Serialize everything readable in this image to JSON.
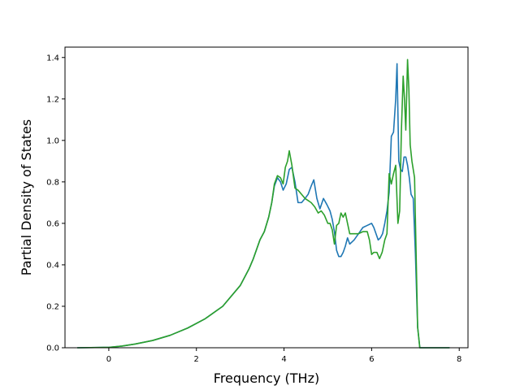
{
  "chart_data": {
    "type": "line",
    "title": "",
    "xlabel": "Frequency (THz)",
    "ylabel": "Partial Density of States",
    "xlim": [
      -1.0,
      8.2
    ],
    "ylim": [
      0.0,
      1.45
    ],
    "x_ticks": [
      0,
      2,
      4,
      6,
      8
    ],
    "x_tick_labels": [
      "0",
      "2",
      "4",
      "6",
      "8"
    ],
    "y_ticks": [
      0.0,
      0.2,
      0.4,
      0.6,
      0.8,
      1.0,
      1.2,
      1.4
    ],
    "y_tick_labels": [
      "0.0",
      "0.2",
      "0.4",
      "0.6",
      "0.8",
      "1.0",
      "1.2",
      "1.4"
    ],
    "grid": false,
    "legend": "none",
    "series": [
      {
        "color": "#1f77b4",
        "x": [
          -0.72,
          0.0,
          0.3,
          0.6,
          1.0,
          1.4,
          1.8,
          2.2,
          2.6,
          3.0,
          3.2,
          3.3,
          3.45,
          3.55,
          3.65,
          3.72,
          3.78,
          3.85,
          3.92,
          3.98,
          4.05,
          4.12,
          4.18,
          4.25,
          4.32,
          4.4,
          4.48,
          4.55,
          4.62,
          4.68,
          4.75,
          4.82,
          4.9,
          4.98,
          5.05,
          5.1,
          5.15,
          5.2,
          5.25,
          5.3,
          5.35,
          5.4,
          5.45,
          5.5,
          5.6,
          5.7,
          5.8,
          5.9,
          6.0,
          6.05,
          6.1,
          6.15,
          6.2,
          6.25,
          6.3,
          6.35,
          6.4,
          6.45,
          6.5,
          6.55,
          6.58,
          6.62,
          6.66,
          6.7,
          6.74,
          6.78,
          6.82,
          6.86,
          6.9,
          6.95,
          7.0,
          7.05,
          7.1,
          7.2,
          7.78
        ],
        "y": [
          0.0,
          0.002,
          0.008,
          0.018,
          0.035,
          0.06,
          0.095,
          0.14,
          0.2,
          0.3,
          0.38,
          0.43,
          0.52,
          0.56,
          0.63,
          0.7,
          0.78,
          0.82,
          0.8,
          0.76,
          0.79,
          0.86,
          0.87,
          0.8,
          0.7,
          0.7,
          0.72,
          0.74,
          0.78,
          0.81,
          0.72,
          0.67,
          0.72,
          0.69,
          0.66,
          0.62,
          0.56,
          0.47,
          0.44,
          0.44,
          0.46,
          0.49,
          0.53,
          0.5,
          0.52,
          0.55,
          0.58,
          0.59,
          0.6,
          0.58,
          0.55,
          0.52,
          0.53,
          0.55,
          0.6,
          0.66,
          0.75,
          1.02,
          1.04,
          1.2,
          1.37,
          0.9,
          0.86,
          0.85,
          0.92,
          0.92,
          0.88,
          0.82,
          0.74,
          0.72,
          0.45,
          0.1,
          0.0,
          0.0,
          0.0
        ]
      },
      {
        "color": "#2ca02c",
        "x": [
          -0.72,
          0.0,
          0.3,
          0.6,
          1.0,
          1.4,
          1.8,
          2.2,
          2.6,
          3.0,
          3.2,
          3.3,
          3.45,
          3.55,
          3.65,
          3.72,
          3.78,
          3.85,
          3.92,
          3.98,
          4.03,
          4.08,
          4.12,
          4.18,
          4.25,
          4.32,
          4.4,
          4.48,
          4.55,
          4.62,
          4.7,
          4.78,
          4.85,
          4.92,
          5.0,
          5.05,
          5.1,
          5.15,
          5.2,
          5.25,
          5.3,
          5.35,
          5.4,
          5.45,
          5.5,
          5.6,
          5.7,
          5.8,
          5.9,
          5.95,
          6.0,
          6.05,
          6.12,
          6.18,
          6.24,
          6.3,
          6.35,
          6.4,
          6.45,
          6.5,
          6.55,
          6.6,
          6.64,
          6.68,
          6.72,
          6.75,
          6.78,
          6.82,
          6.85,
          6.88,
          6.92,
          6.98,
          7.05,
          7.1,
          7.2,
          7.78
        ],
        "y": [
          0.0,
          0.002,
          0.008,
          0.018,
          0.035,
          0.06,
          0.095,
          0.14,
          0.2,
          0.3,
          0.38,
          0.43,
          0.52,
          0.56,
          0.63,
          0.7,
          0.79,
          0.83,
          0.82,
          0.79,
          0.87,
          0.9,
          0.95,
          0.88,
          0.77,
          0.76,
          0.74,
          0.72,
          0.71,
          0.7,
          0.68,
          0.65,
          0.66,
          0.64,
          0.6,
          0.6,
          0.57,
          0.5,
          0.59,
          0.6,
          0.65,
          0.63,
          0.65,
          0.6,
          0.55,
          0.55,
          0.55,
          0.56,
          0.56,
          0.52,
          0.45,
          0.46,
          0.46,
          0.43,
          0.46,
          0.52,
          0.55,
          0.84,
          0.79,
          0.84,
          0.88,
          0.6,
          0.66,
          1.05,
          1.31,
          1.2,
          1.05,
          1.39,
          1.25,
          0.98,
          0.9,
          0.82,
          0.1,
          0.0,
          0.0,
          0.0
        ]
      }
    ]
  }
}
